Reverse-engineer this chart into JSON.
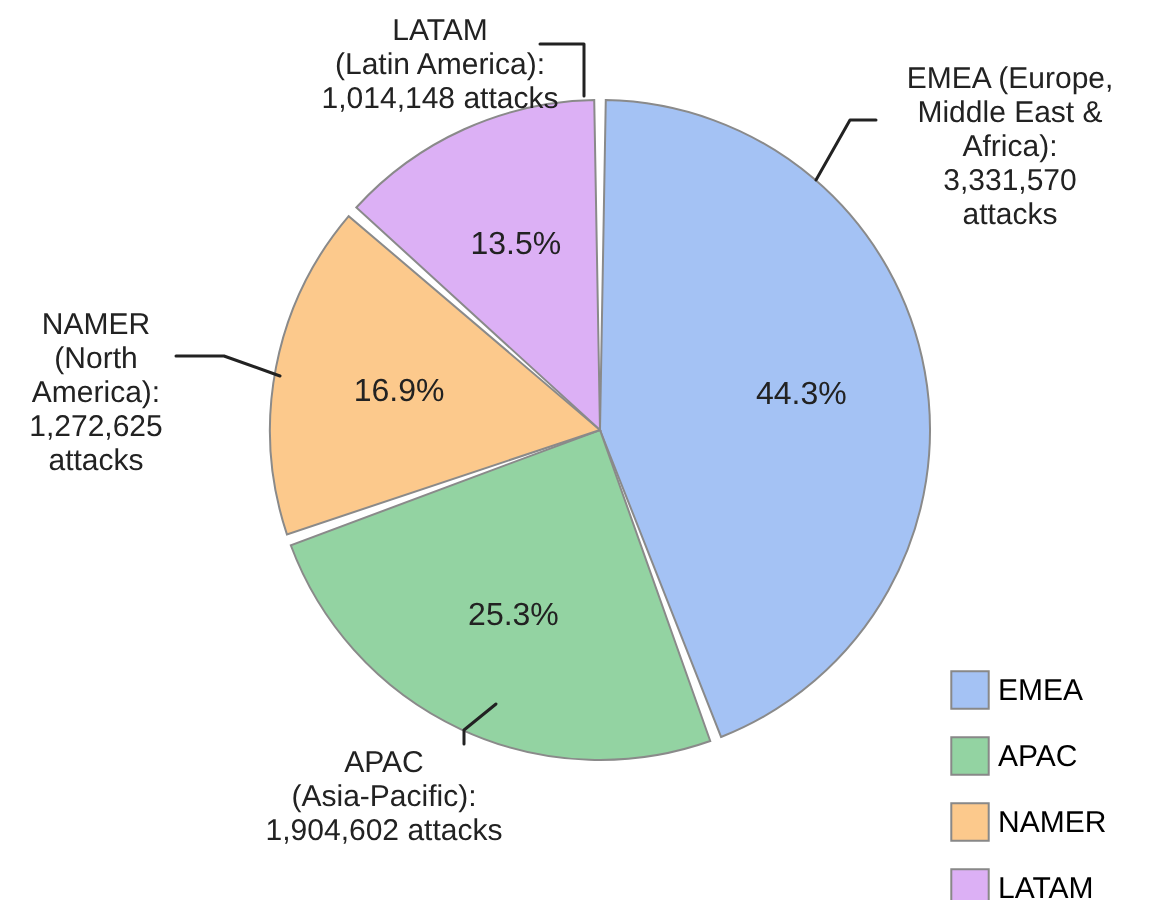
{
  "chart_data": {
    "type": "pie",
    "categories": [
      "EMEA",
      "APAC",
      "NAMER",
      "LATAM"
    ],
    "values": [
      44.3,
      25.3,
      16.9,
      13.5
    ],
    "colors": [
      "#a4c2f4",
      "#93d3a2",
      "#fcc98c",
      "#dcb0f5"
    ],
    "value_labels": [
      "44.3%",
      "25.3%",
      "16.9%",
      "13.5%"
    ],
    "annotations": [
      "EMEA (Europe,\nMiddle East &\nAfrica):\n3,331,570\nattacks",
      "APAC\n(Asia-Pacific):\n1,904,602 attacks",
      "NAMER\n(North\nAmerica):\n1,272,625\nattacks",
      "LATAM\n(Latin America):\n1,014,148 attacks"
    ],
    "legend": "bottom right"
  }
}
